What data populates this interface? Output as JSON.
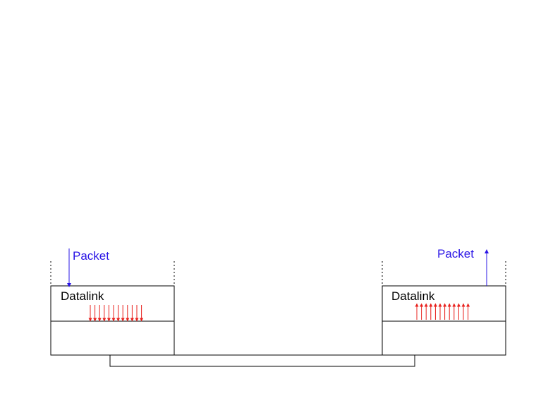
{
  "colors": {
    "packet": "#2a14e6",
    "bits": "#e8201c",
    "stroke": "#000000"
  },
  "left_host": {
    "layer_label": "Datalink",
    "packet_label": "Packet",
    "packet_direction": "down",
    "bit_direction": "down",
    "bit_count": 12
  },
  "right_host": {
    "layer_label": "Datalink",
    "packet_label": "Packet",
    "packet_direction": "up",
    "bit_direction": "up",
    "bit_count": 12
  }
}
